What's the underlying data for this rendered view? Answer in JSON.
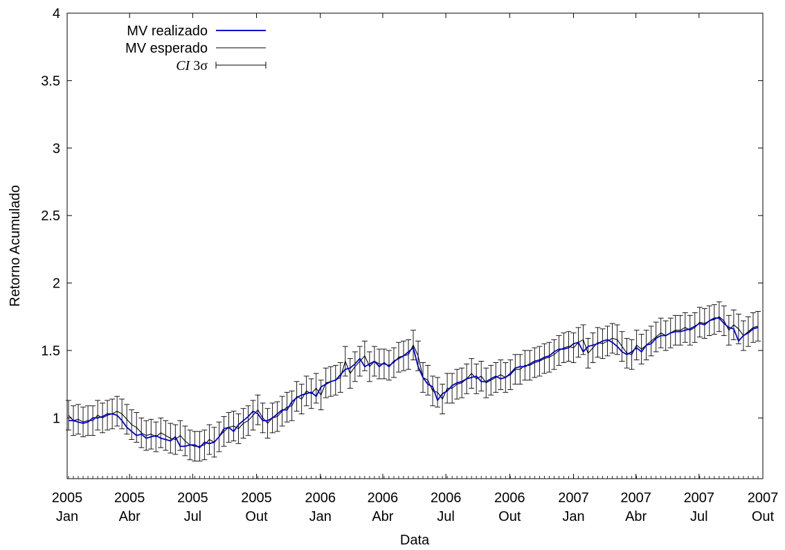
{
  "chart_data": {
    "type": "line",
    "xlabel": "Data",
    "ylabel": "Retorno Acumulado",
    "ylim": [
      0.55,
      4.0
    ],
    "xlim": [
      "2005-01-01",
      "2007-10-01"
    ],
    "x_ticks": [
      {
        "date": "2005-01-01",
        "year": "2005",
        "month": "Jan"
      },
      {
        "date": "2005-04-01",
        "year": "2005",
        "month": "Abr"
      },
      {
        "date": "2005-07-01",
        "year": "2005",
        "month": "Jul"
      },
      {
        "date": "2005-10-01",
        "year": "2005",
        "month": "Out"
      },
      {
        "date": "2006-01-01",
        "year": "2006",
        "month": "Jan"
      },
      {
        "date": "2006-04-01",
        "year": "2006",
        "month": "Abr"
      },
      {
        "date": "2006-07-01",
        "year": "2006",
        "month": "Jul"
      },
      {
        "date": "2006-10-01",
        "year": "2006",
        "month": "Out"
      },
      {
        "date": "2007-01-01",
        "year": "2007",
        "month": "Jan"
      },
      {
        "date": "2007-04-01",
        "year": "2007",
        "month": "Abr"
      },
      {
        "date": "2007-07-01",
        "year": "2007",
        "month": "Jul"
      },
      {
        "date": "2007-10-01",
        "year": "2007",
        "month": "Out"
      }
    ],
    "y_ticks": [
      1,
      1.5,
      2,
      2.5,
      3,
      3.5,
      4
    ],
    "y_tick_labels": [
      "1",
      "1.5",
      "2",
      "2.5",
      "3",
      "3.5",
      "4"
    ],
    "grid": false,
    "legend_position": "top-left",
    "interval_half_width": 0.11,
    "series": [
      {
        "name": "MV realizado",
        "color": "#0000cc",
        "kind": "line"
      },
      {
        "name": "MV esperado",
        "color": "#000000",
        "kind": "line"
      },
      {
        "name": "CI 3σ",
        "name_italic": "CI",
        "name_rest": " 3σ",
        "color": "#000000",
        "kind": "errorbars"
      }
    ],
    "x": [
      "2005-01-03",
      "2005-01-10",
      "2005-01-17",
      "2005-01-24",
      "2005-01-31",
      "2005-02-07",
      "2005-02-14",
      "2005-02-21",
      "2005-02-28",
      "2005-03-07",
      "2005-03-14",
      "2005-03-21",
      "2005-03-28",
      "2005-04-04",
      "2005-04-11",
      "2005-04-18",
      "2005-04-25",
      "2005-05-02",
      "2005-05-09",
      "2005-05-16",
      "2005-05-23",
      "2005-05-30",
      "2005-06-06",
      "2005-06-13",
      "2005-06-20",
      "2005-06-27",
      "2005-07-04",
      "2005-07-11",
      "2005-07-18",
      "2005-07-25",
      "2005-08-01",
      "2005-08-08",
      "2005-08-15",
      "2005-08-22",
      "2005-08-29",
      "2005-09-05",
      "2005-09-12",
      "2005-09-19",
      "2005-09-26",
      "2005-10-03",
      "2005-10-10",
      "2005-10-17",
      "2005-10-24",
      "2005-10-31",
      "2005-11-07",
      "2005-11-14",
      "2005-11-21",
      "2005-11-28",
      "2005-12-05",
      "2005-12-12",
      "2005-12-19",
      "2005-12-26",
      "2006-01-02",
      "2006-01-09",
      "2006-01-16",
      "2006-01-23",
      "2006-01-30",
      "2006-02-06",
      "2006-02-13",
      "2006-02-20",
      "2006-02-27",
      "2006-03-06",
      "2006-03-13",
      "2006-03-20",
      "2006-03-27",
      "2006-04-03",
      "2006-04-10",
      "2006-04-17",
      "2006-04-24",
      "2006-05-01",
      "2006-05-08",
      "2006-05-15",
      "2006-05-22",
      "2006-05-29",
      "2006-06-05",
      "2006-06-12",
      "2006-06-19",
      "2006-06-26",
      "2006-07-03",
      "2006-07-10",
      "2006-07-17",
      "2006-07-24",
      "2006-07-31",
      "2006-08-07",
      "2006-08-14",
      "2006-08-21",
      "2006-08-28",
      "2006-09-04",
      "2006-09-11",
      "2006-09-18",
      "2006-09-25",
      "2006-10-02",
      "2006-10-09",
      "2006-10-16",
      "2006-10-23",
      "2006-10-30",
      "2006-11-06",
      "2006-11-13",
      "2006-11-20",
      "2006-11-27",
      "2006-12-04",
      "2006-12-11",
      "2006-12-18",
      "2006-12-25",
      "2007-01-01",
      "2007-01-08",
      "2007-01-15",
      "2007-01-22",
      "2007-01-29",
      "2007-02-05",
      "2007-02-12",
      "2007-02-19",
      "2007-02-26",
      "2007-03-05",
      "2007-03-12",
      "2007-03-19",
      "2007-03-26",
      "2007-04-02",
      "2007-04-09",
      "2007-04-16",
      "2007-04-23",
      "2007-04-30",
      "2007-05-07",
      "2007-05-14",
      "2007-05-21",
      "2007-05-28",
      "2007-06-04",
      "2007-06-11",
      "2007-06-18",
      "2007-06-25",
      "2007-07-02",
      "2007-07-09",
      "2007-07-16",
      "2007-07-23",
      "2007-07-30",
      "2007-08-06",
      "2007-08-13",
      "2007-08-20",
      "2007-08-27",
      "2007-09-03",
      "2007-09-10",
      "2007-09-17",
      "2007-09-24"
    ],
    "realizado": [
      0.98,
      0.98,
      0.97,
      0.96,
      0.97,
      1.0,
      1.0,
      1.01,
      1.03,
      1.03,
      1.02,
      0.98,
      0.93,
      0.9,
      0.87,
      0.88,
      0.85,
      0.86,
      0.87,
      0.85,
      0.84,
      0.83,
      0.86,
      0.79,
      0.79,
      0.8,
      0.8,
      0.78,
      0.82,
      0.81,
      0.82,
      0.86,
      0.92,
      0.93,
      0.9,
      0.95,
      0.98,
      1.01,
      1.05,
      1.03,
      0.98,
      0.98,
      1.0,
      1.03,
      1.06,
      1.06,
      1.12,
      1.15,
      1.17,
      1.18,
      1.19,
      1.16,
      1.23,
      1.25,
      1.27,
      1.28,
      1.32,
      1.36,
      1.37,
      1.4,
      1.44,
      1.38,
      1.4,
      1.42,
      1.38,
      1.41,
      1.38,
      1.42,
      1.44,
      1.46,
      1.49,
      1.52,
      1.38,
      1.3,
      1.25,
      1.23,
      1.13,
      1.18,
      1.2,
      1.24,
      1.26,
      1.27,
      1.29,
      1.3,
      1.31,
      1.27,
      1.27,
      1.29,
      1.31,
      1.29,
      1.3,
      1.33,
      1.37,
      1.38,
      1.38,
      1.4,
      1.42,
      1.43,
      1.45,
      1.46,
      1.49,
      1.51,
      1.51,
      1.52,
      1.55,
      1.56,
      1.49,
      1.53,
      1.54,
      1.55,
      1.57,
      1.58,
      1.56,
      1.53,
      1.49,
      1.47,
      1.49,
      1.52,
      1.49,
      1.54,
      1.55,
      1.59,
      1.61,
      1.61,
      1.63,
      1.64,
      1.64,
      1.65,
      1.66,
      1.68,
      1.7,
      1.69,
      1.72,
      1.74,
      1.74,
      1.7,
      1.67,
      1.66,
      1.57,
      1.61,
      1.63,
      1.66,
      1.67,
      1.64,
      1.66
    ],
    "esperado": [
      1.02,
      0.98,
      0.99,
      0.97,
      0.98,
      0.98,
      1.02,
      1.0,
      1.02,
      1.03,
      1.05,
      1.03,
      0.99,
      0.95,
      0.93,
      0.89,
      0.87,
      0.88,
      0.86,
      0.89,
      0.87,
      0.85,
      0.84,
      0.87,
      0.83,
      0.8,
      0.79,
      0.79,
      0.8,
      0.84,
      0.82,
      0.86,
      0.9,
      0.93,
      0.94,
      0.92,
      0.96,
      0.98,
      1.02,
      1.06,
      1.0,
      0.96,
      1.0,
      1.01,
      1.05,
      1.08,
      1.09,
      1.16,
      1.14,
      1.2,
      1.18,
      1.22,
      1.17,
      1.26,
      1.27,
      1.28,
      1.3,
      1.42,
      1.33,
      1.38,
      1.42,
      1.46,
      1.38,
      1.42,
      1.4,
      1.4,
      1.39,
      1.41,
      1.45,
      1.46,
      1.47,
      1.54,
      1.46,
      1.3,
      1.28,
      1.2,
      1.19,
      1.14,
      1.22,
      1.22,
      1.25,
      1.26,
      1.29,
      1.33,
      1.29,
      1.31,
      1.26,
      1.28,
      1.3,
      1.32,
      1.3,
      1.32,
      1.36,
      1.36,
      1.39,
      1.39,
      1.41,
      1.42,
      1.44,
      1.45,
      1.47,
      1.5,
      1.52,
      1.53,
      1.52,
      1.56,
      1.58,
      1.48,
      1.52,
      1.56,
      1.55,
      1.57,
      1.59,
      1.58,
      1.53,
      1.48,
      1.47,
      1.54,
      1.51,
      1.54,
      1.57,
      1.6,
      1.63,
      1.61,
      1.63,
      1.65,
      1.65,
      1.67,
      1.65,
      1.67,
      1.71,
      1.7,
      1.72,
      1.73,
      1.75,
      1.72,
      1.65,
      1.69,
      1.66,
      1.61,
      1.64,
      1.67,
      1.68,
      1.66,
      1.7
    ]
  }
}
